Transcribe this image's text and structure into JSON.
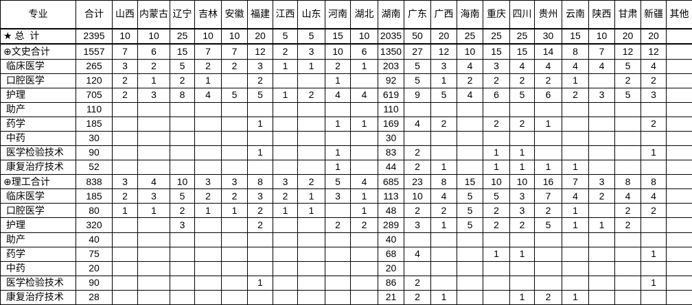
{
  "colors": {
    "border": "#000000",
    "background": "#ffffff",
    "text": "#000000"
  },
  "table": {
    "columns": [
      "专业",
      "合计",
      "山西",
      "内蒙古",
      "辽宁",
      "吉林",
      "安徽",
      "福建",
      "江西",
      "山东",
      "河南",
      "湖北",
      "湖南",
      "广东",
      "广西",
      "海南",
      "重庆",
      "四川",
      "贵州",
      "云南",
      "陕西",
      "甘肃",
      "新疆",
      "其他"
    ],
    "rows": [
      {
        "marker": "★",
        "label": " 总  计",
        "values": [
          2395,
          10,
          10,
          25,
          10,
          10,
          20,
          5,
          5,
          15,
          10,
          2035,
          50,
          20,
          25,
          25,
          25,
          30,
          15,
          10,
          20,
          20,
          ""
        ]
      },
      {
        "marker": "⊕",
        "label": "文史合计",
        "values": [
          1557,
          7,
          6,
          15,
          7,
          7,
          12,
          2,
          3,
          10,
          6,
          1350,
          27,
          12,
          10,
          15,
          15,
          14,
          8,
          7,
          12,
          12,
          ""
        ]
      },
      {
        "marker": "",
        "label": " 临床医学",
        "values": [
          265,
          3,
          2,
          5,
          2,
          2,
          3,
          1,
          1,
          2,
          1,
          203,
          5,
          3,
          4,
          3,
          4,
          4,
          4,
          4,
          5,
          4,
          ""
        ]
      },
      {
        "marker": "",
        "label": " 口腔医学",
        "values": [
          120,
          2,
          1,
          2,
          1,
          "",
          2,
          "",
          "",
          1,
          "",
          92,
          5,
          1,
          2,
          2,
          2,
          2,
          1,
          "",
          2,
          2,
          ""
        ]
      },
      {
        "marker": "",
        "label": " 护理",
        "values": [
          705,
          2,
          3,
          8,
          4,
          5,
          5,
          1,
          2,
          4,
          4,
          619,
          9,
          5,
          4,
          6,
          5,
          6,
          2,
          3,
          5,
          3,
          ""
        ]
      },
      {
        "marker": "",
        "label": " 助产",
        "values": [
          110,
          "",
          "",
          "",
          "",
          "",
          "",
          "",
          "",
          "",
          "",
          110,
          "",
          "",
          "",
          "",
          "",
          "",
          "",
          "",
          "",
          "",
          ""
        ]
      },
      {
        "marker": "",
        "label": " 药学",
        "values": [
          185,
          "",
          "",
          "",
          "",
          "",
          1,
          "",
          "",
          1,
          1,
          169,
          4,
          2,
          "",
          2,
          2,
          1,
          "",
          "",
          "",
          2,
          ""
        ]
      },
      {
        "marker": "",
        "label": " 中药",
        "values": [
          30,
          "",
          "",
          "",
          "",
          "",
          "",
          "",
          "",
          "",
          "",
          30,
          "",
          "",
          "",
          "",
          "",
          "",
          "",
          "",
          "",
          "",
          ""
        ]
      },
      {
        "marker": "",
        "label": " 医学检验技术",
        "values": [
          90,
          "",
          "",
          "",
          "",
          "",
          1,
          "",
          "",
          1,
          "",
          83,
          2,
          "",
          "",
          1,
          1,
          "",
          "",
          "",
          "",
          1,
          ""
        ]
      },
      {
        "marker": "",
        "label": " 康复治疗技术",
        "values": [
          52,
          "",
          "",
          "",
          "",
          "",
          "",
          "",
          "",
          1,
          "",
          44,
          2,
          1,
          "",
          1,
          1,
          1,
          1,
          "",
          "",
          "",
          ""
        ]
      },
      {
        "marker": "⊕",
        "label": "理工合计",
        "values": [
          838,
          3,
          4,
          10,
          3,
          3,
          8,
          3,
          2,
          5,
          4,
          685,
          23,
          8,
          15,
          10,
          10,
          16,
          7,
          3,
          8,
          8,
          ""
        ]
      },
      {
        "marker": "",
        "label": " 临床医学",
        "values": [
          185,
          2,
          3,
          5,
          2,
          2,
          3,
          2,
          1,
          3,
          1,
          113,
          10,
          4,
          5,
          5,
          3,
          7,
          4,
          2,
          4,
          4,
          ""
        ]
      },
      {
        "marker": "",
        "label": " 口腔医学",
        "values": [
          80,
          1,
          1,
          2,
          1,
          1,
          2,
          1,
          1,
          "",
          1,
          48,
          2,
          2,
          5,
          2,
          3,
          2,
          1,
          "",
          2,
          2,
          ""
        ]
      },
      {
        "marker": "",
        "label": " 护理",
        "values": [
          320,
          "",
          "",
          3,
          "",
          "",
          2,
          "",
          "",
          2,
          2,
          289,
          3,
          1,
          5,
          2,
          2,
          5,
          1,
          1,
          2,
          "",
          ""
        ]
      },
      {
        "marker": "",
        "label": " 助产",
        "values": [
          40,
          "",
          "",
          "",
          "",
          "",
          "",
          "",
          "",
          "",
          "",
          40,
          "",
          "",
          "",
          "",
          "",
          "",
          "",
          "",
          "",
          "",
          ""
        ]
      },
      {
        "marker": "",
        "label": " 药学",
        "values": [
          75,
          "",
          "",
          "",
          "",
          "",
          "",
          "",
          "",
          "",
          "",
          68,
          4,
          "",
          "",
          1,
          1,
          "",
          "",
          "",
          "",
          1,
          ""
        ]
      },
      {
        "marker": "",
        "label": " 中药",
        "values": [
          20,
          "",
          "",
          "",
          "",
          "",
          "",
          "",
          "",
          "",
          "",
          20,
          "",
          "",
          "",
          "",
          "",
          "",
          "",
          "",
          "",
          "",
          ""
        ]
      },
      {
        "marker": "",
        "label": " 医学检验技术",
        "values": [
          90,
          "",
          "",
          "",
          "",
          "",
          1,
          "",
          "",
          "",
          "",
          86,
          2,
          "",
          "",
          "",
          "",
          "",
          "",
          "",
          "",
          1,
          ""
        ]
      },
      {
        "marker": "",
        "label": " 康复治疗技术",
        "values": [
          28,
          "",
          "",
          "",
          "",
          "",
          "",
          "",
          "",
          "",
          "",
          21,
          2,
          1,
          "",
          "",
          1,
          2,
          1,
          "",
          "",
          "",
          ""
        ]
      }
    ]
  }
}
